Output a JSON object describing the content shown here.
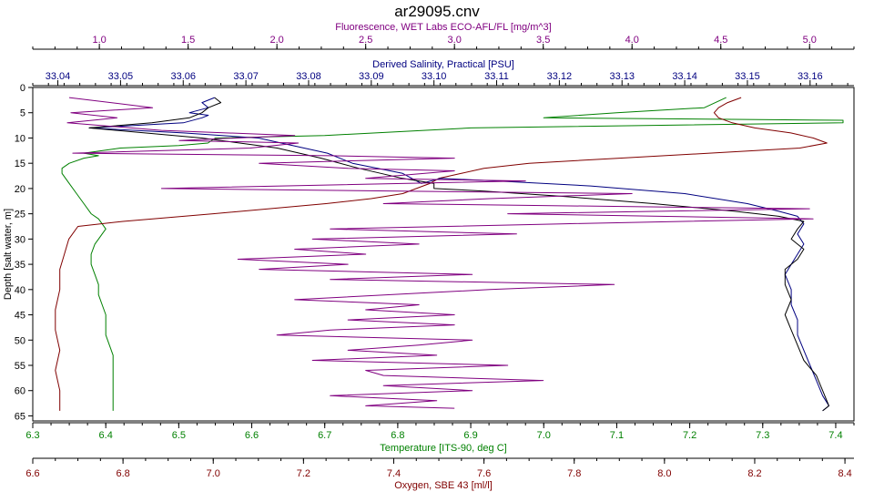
{
  "chart_data": {
    "type": "line",
    "title": "ar29095.cnv",
    "grid": false,
    "y_axis": {
      "label": "Depth [salt water, m]",
      "range": [
        0,
        66
      ],
      "inverted": true,
      "ticks": [
        0,
        5,
        10,
        15,
        20,
        25,
        30,
        35,
        40,
        45,
        50,
        55,
        60,
        65
      ],
      "color": "#000000"
    },
    "x_axes": [
      {
        "id": "fluorescence",
        "label": "Fluorescence, WET Labs ECO-AFL/FL [mg/m^3]",
        "position": "top",
        "range": [
          0.625,
          5.25
        ],
        "ticks": [
          1.0,
          1.5,
          2.0,
          2.5,
          3.0,
          3.5,
          4.0,
          4.5,
          5.0
        ],
        "tick_labels": [
          "1.0",
          "1.5",
          "2.0",
          "2.5",
          "3.0",
          "3.5",
          "4.0",
          "4.5",
          "5.0"
        ],
        "color": "#800080"
      },
      {
        "id": "salinity",
        "label": "Derived Salinity, Practical [PSU]",
        "position": "top",
        "range": [
          33.036,
          33.167
        ],
        "ticks": [
          33.04,
          33.05,
          33.06,
          33.07,
          33.08,
          33.09,
          33.1,
          33.11,
          33.12,
          33.13,
          33.14,
          33.15,
          33.16
        ],
        "tick_labels": [
          "33.04",
          "33.05",
          "33.06",
          "33.07",
          "33.08",
          "33.09",
          "33.10",
          "33.11",
          "33.12",
          "33.13",
          "33.14",
          "33.15",
          "33.16"
        ],
        "color": "#000080"
      },
      {
        "id": "temperature",
        "label": "Temperature [ITS-90, deg C]",
        "position": "bottom",
        "range": [
          6.3,
          7.425
        ],
        "ticks": [
          6.3,
          6.4,
          6.5,
          6.6,
          6.7,
          6.8,
          6.9,
          7.0,
          7.1,
          7.2,
          7.3,
          7.4
        ],
        "tick_labels": [
          "6.3",
          "6.4",
          "6.5",
          "6.6",
          "6.7",
          "6.8",
          "6.9",
          "7.0",
          "7.1",
          "7.2",
          "7.3",
          "7.4"
        ],
        "color": "#008000"
      },
      {
        "id": "oxygen",
        "label": "Oxygen, SBE 43 [ml/l]",
        "position": "bottom",
        "range": [
          6.6,
          8.42
        ],
        "ticks": [
          6.6,
          6.8,
          7.0,
          7.2,
          7.4,
          7.6,
          7.8,
          8.0,
          8.2,
          8.4
        ],
        "tick_labels": [
          "6.6",
          "6.8",
          "7.0",
          "7.2",
          "7.4",
          "7.6",
          "7.8",
          "8.0",
          "8.2",
          "8.4"
        ],
        "color": "#800000"
      }
    ],
    "series": [
      {
        "axis": "temperature",
        "color": "#008000",
        "points": [
          [
            7.25,
            2
          ],
          [
            7.22,
            4
          ],
          [
            7.1,
            5
          ],
          [
            7.0,
            6
          ],
          [
            7.41,
            6.5
          ],
          [
            7.41,
            7
          ],
          [
            6.9,
            8
          ],
          [
            6.7,
            9.5
          ],
          [
            6.55,
            10
          ],
          [
            6.54,
            11
          ],
          [
            6.5,
            11.5
          ],
          [
            6.42,
            12
          ],
          [
            6.37,
            13
          ],
          [
            6.39,
            13.5
          ],
          [
            6.37,
            14
          ],
          [
            6.35,
            15
          ],
          [
            6.34,
            16
          ],
          [
            6.34,
            17
          ],
          [
            6.35,
            19
          ],
          [
            6.36,
            21
          ],
          [
            6.37,
            23
          ],
          [
            6.38,
            25
          ],
          [
            6.39,
            26
          ],
          [
            6.395,
            27
          ],
          [
            6.4,
            28
          ],
          [
            6.395,
            29
          ],
          [
            6.39,
            30
          ],
          [
            6.385,
            31
          ],
          [
            6.38,
            33
          ],
          [
            6.38,
            35
          ],
          [
            6.385,
            37
          ],
          [
            6.39,
            39
          ],
          [
            6.39,
            41
          ],
          [
            6.395,
            43
          ],
          [
            6.4,
            45
          ],
          [
            6.4,
            47
          ],
          [
            6.4,
            49
          ],
          [
            6.405,
            51
          ],
          [
            6.41,
            53
          ],
          [
            6.41,
            55
          ],
          [
            6.41,
            57
          ],
          [
            6.41,
            59
          ],
          [
            6.41,
            61
          ],
          [
            6.41,
            63
          ],
          [
            6.41,
            64
          ]
        ]
      },
      {
        "axis": "oxygen",
        "color": "#800000",
        "points": [
          [
            8.17,
            2
          ],
          [
            8.14,
            3
          ],
          [
            8.12,
            4
          ],
          [
            8.11,
            5
          ],
          [
            8.12,
            6
          ],
          [
            8.15,
            7
          ],
          [
            8.2,
            8
          ],
          [
            8.28,
            9
          ],
          [
            8.33,
            10
          ],
          [
            8.36,
            11
          ],
          [
            8.3,
            12
          ],
          [
            8.1,
            13
          ],
          [
            7.9,
            14
          ],
          [
            7.7,
            15
          ],
          [
            7.6,
            16
          ],
          [
            7.55,
            17
          ],
          [
            7.5,
            18
          ],
          [
            7.48,
            19
          ],
          [
            7.45,
            20
          ],
          [
            7.42,
            21
          ],
          [
            7.35,
            22
          ],
          [
            7.25,
            23
          ],
          [
            7.0,
            25
          ],
          [
            6.8,
            26.5
          ],
          [
            6.7,
            27.5
          ],
          [
            6.68,
            30
          ],
          [
            6.67,
            33
          ],
          [
            6.66,
            36
          ],
          [
            6.66,
            40
          ],
          [
            6.65,
            44
          ],
          [
            6.65,
            48
          ],
          [
            6.66,
            52
          ],
          [
            6.65,
            56
          ],
          [
            6.66,
            60
          ],
          [
            6.66,
            62
          ],
          [
            6.66,
            64
          ]
        ]
      },
      {
        "axis": "salinity",
        "color": "#000080",
        "points": [
          [
            33.065,
            2
          ],
          [
            33.063,
            3
          ],
          [
            33.064,
            4
          ],
          [
            33.061,
            5
          ],
          [
            33.064,
            5.5
          ],
          [
            33.063,
            6
          ],
          [
            33.06,
            7
          ],
          [
            33.045,
            8
          ],
          [
            33.06,
            9
          ],
          [
            33.072,
            10
          ],
          [
            33.083,
            13
          ],
          [
            33.087,
            15
          ],
          [
            33.095,
            17
          ],
          [
            33.098,
            19
          ],
          [
            33.101,
            18
          ],
          [
            33.11,
            18.5
          ],
          [
            33.125,
            19.5
          ],
          [
            33.14,
            21
          ],
          [
            33.15,
            23
          ],
          [
            33.155,
            24.5
          ],
          [
            33.158,
            25.5
          ],
          [
            33.159,
            27
          ],
          [
            33.158,
            29
          ],
          [
            33.159,
            31
          ],
          [
            33.158,
            33
          ],
          [
            33.157,
            35
          ],
          [
            33.156,
            37
          ],
          [
            33.157,
            40
          ],
          [
            33.157,
            43
          ],
          [
            33.158,
            46
          ],
          [
            33.158,
            49
          ],
          [
            33.159,
            52
          ],
          [
            33.16,
            55
          ],
          [
            33.161,
            58
          ],
          [
            33.162,
            61
          ],
          [
            33.163,
            63
          ],
          [
            33.162,
            64
          ]
        ]
      },
      {
        "axis": "salinity",
        "color": "#000000",
        "points": [
          [
            33.065,
            2
          ],
          [
            33.066,
            3
          ],
          [
            33.064,
            4
          ],
          [
            33.063,
            5
          ],
          [
            33.061,
            6
          ],
          [
            33.055,
            7
          ],
          [
            33.045,
            8
          ],
          [
            33.063,
            10
          ],
          [
            33.075,
            12
          ],
          [
            33.082,
            14
          ],
          [
            33.088,
            16
          ],
          [
            33.095,
            18
          ],
          [
            33.1,
            19
          ],
          [
            33.1,
            20
          ],
          [
            33.108,
            20.5
          ],
          [
            33.12,
            21.5
          ],
          [
            33.135,
            23
          ],
          [
            33.148,
            24.5
          ],
          [
            33.155,
            25.5
          ],
          [
            33.159,
            26.5
          ],
          [
            33.158,
            28
          ],
          [
            33.157,
            30
          ],
          [
            33.159,
            32
          ],
          [
            33.158,
            34
          ],
          [
            33.156,
            36
          ],
          [
            33.156,
            39
          ],
          [
            33.157,
            42
          ],
          [
            33.156,
            45
          ],
          [
            33.157,
            48
          ],
          [
            33.158,
            51
          ],
          [
            33.159,
            54
          ],
          [
            33.161,
            57
          ],
          [
            33.162,
            60
          ],
          [
            33.163,
            63
          ],
          [
            33.162,
            64
          ]
        ]
      },
      {
        "axis": "fluorescence",
        "color": "#800080",
        "points": [
          [
            0.83,
            2
          ],
          [
            1.3,
            4
          ],
          [
            0.84,
            5
          ],
          [
            1.1,
            6
          ],
          [
            0.82,
            7
          ],
          [
            1.35,
            8.5
          ],
          [
            2.1,
            9.5
          ],
          [
            1.45,
            10.5
          ],
          [
            2.12,
            11
          ],
          [
            1.85,
            12
          ],
          [
            0.85,
            13
          ],
          [
            2.3,
            13.5
          ],
          [
            3.0,
            14
          ],
          [
            1.9,
            15
          ],
          [
            2.4,
            16
          ],
          [
            3.0,
            16.5
          ],
          [
            2.5,
            18
          ],
          [
            3.4,
            18.5
          ],
          [
            1.35,
            20
          ],
          [
            4.0,
            21
          ],
          [
            3.2,
            22
          ],
          [
            2.6,
            23
          ],
          [
            5.0,
            24
          ],
          [
            3.3,
            25
          ],
          [
            5.02,
            26
          ],
          [
            3.6,
            27
          ],
          [
            2.3,
            28
          ],
          [
            3.35,
            29
          ],
          [
            2.2,
            30
          ],
          [
            2.8,
            31
          ],
          [
            2.1,
            32
          ],
          [
            2.5,
            33
          ],
          [
            1.78,
            34
          ],
          [
            2.4,
            35
          ],
          [
            1.9,
            36
          ],
          [
            3.1,
            37
          ],
          [
            2.3,
            38
          ],
          [
            3.9,
            39
          ],
          [
            3.2,
            40
          ],
          [
            2.1,
            42
          ],
          [
            2.8,
            43
          ],
          [
            2.5,
            44
          ],
          [
            3.0,
            45
          ],
          [
            2.4,
            46
          ],
          [
            3.0,
            47
          ],
          [
            2.3,
            48
          ],
          [
            2.0,
            49
          ],
          [
            3.1,
            50
          ],
          [
            2.8,
            51
          ],
          [
            2.4,
            52
          ],
          [
            2.9,
            53
          ],
          [
            2.2,
            54
          ],
          [
            3.3,
            55
          ],
          [
            2.5,
            56
          ],
          [
            2.6,
            57
          ],
          [
            3.5,
            58
          ],
          [
            2.6,
            59
          ],
          [
            3.1,
            60
          ],
          [
            2.3,
            61
          ],
          [
            2.9,
            62
          ],
          [
            2.5,
            63
          ],
          [
            3.0,
            63.5
          ]
        ]
      }
    ]
  }
}
